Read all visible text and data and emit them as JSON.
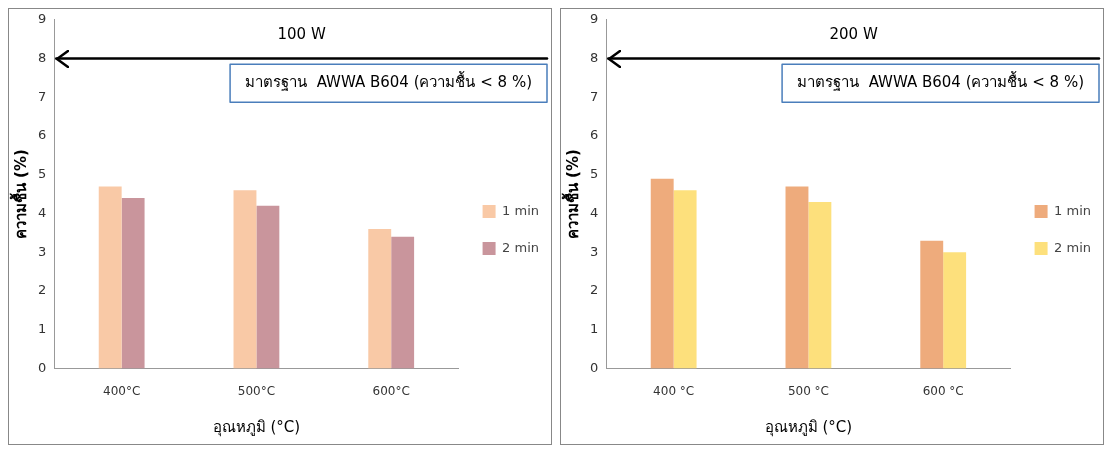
{
  "chart_data": [
    {
      "type": "bar",
      "title": "100 W",
      "xlabel": "อุณหภูมิ (°C)",
      "ylabel": "ความชื้น (%)",
      "categories": [
        "400°C",
        "500°C",
        "600°C"
      ],
      "series": [
        {
          "name": "1 min",
          "color": "#f9c9a6",
          "values": [
            4.7,
            4.6,
            3.6
          ]
        },
        {
          "name": "2 min",
          "color": "#c9959c",
          "values": [
            4.4,
            4.2,
            3.4
          ]
        }
      ],
      "ylim": [
        0,
        9
      ],
      "yticks": [
        0,
        1,
        2,
        3,
        4,
        5,
        6,
        7,
        8,
        9
      ],
      "grid": false,
      "legend": "right",
      "ref_lines": [
        {
          "axis": "y",
          "value": 8,
          "color": "#000000"
        }
      ],
      "annotations": [
        "มาตรฐาน  AWWA B604 (ความชื้น < 8 %)"
      ]
    },
    {
      "type": "bar",
      "title": "200 W",
      "xlabel": "อุณหภูมิ (°C)",
      "ylabel": "ความชื้น (%)",
      "categories": [
        "400 °C",
        "500 °C",
        "600 °C"
      ],
      "series": [
        {
          "name": "1 min",
          "color": "#eeab7c",
          "values": [
            4.9,
            4.7,
            3.3
          ]
        },
        {
          "name": "2 min",
          "color": "#fde07c",
          "values": [
            4.6,
            4.3,
            3.0
          ]
        }
      ],
      "ylim": [
        0,
        9
      ],
      "yticks": [
        0,
        1,
        2,
        3,
        4,
        5,
        6,
        7,
        8,
        9
      ],
      "grid": false,
      "legend": "right",
      "ref_lines": [
        {
          "axis": "y",
          "value": 8,
          "color": "#000000"
        }
      ],
      "annotations": [
        "มาตรฐาน  AWWA B604 (ความชื้น < 8 %)"
      ]
    }
  ]
}
